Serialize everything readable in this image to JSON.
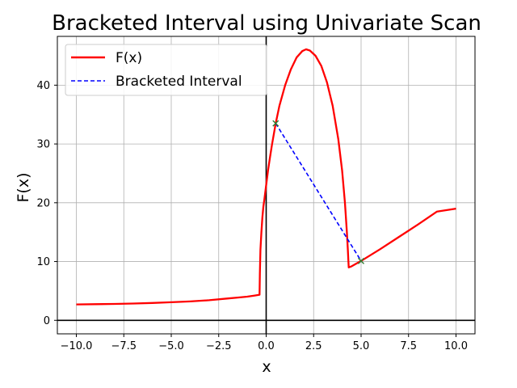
{
  "chart_data": {
    "type": "line",
    "title": "Bracketed Interval using Univariate Scan",
    "xlabel": "x",
    "ylabel": "F(x)",
    "xlim": [
      -11.0,
      11.0
    ],
    "ylim": [
      -2.3,
      48.3
    ],
    "xticks": [
      -10.0,
      -7.5,
      -5.0,
      -2.5,
      0.0,
      2.5,
      5.0,
      7.5,
      10.0
    ],
    "xtick_labels": [
      "−10.0",
      "−7.5",
      "−5.0",
      "−2.5",
      "0.0",
      "2.5",
      "5.0",
      "7.5",
      "10.0"
    ],
    "yticks": [
      0,
      10,
      20,
      30,
      40
    ],
    "ytick_labels": [
      "0",
      "10",
      "20",
      "30",
      "40"
    ],
    "grid": true,
    "legend_position": "top-left",
    "series": [
      {
        "name": "F(x)",
        "color": "#ff0000",
        "style": "solid",
        "x": [
          -10.0,
          -9.0,
          -8.0,
          -7.0,
          -6.0,
          -5.0,
          -4.0,
          -3.0,
          -2.0,
          -1.5,
          -1.0,
          -0.6,
          -0.35,
          -0.33,
          -0.3,
          -0.25,
          -0.2,
          -0.15,
          -0.1,
          0.0,
          0.1,
          0.2,
          0.3,
          0.5,
          0.7,
          1.0,
          1.3,
          1.6,
          1.9,
          2.1,
          2.3,
          2.6,
          2.9,
          3.2,
          3.5,
          3.8,
          4.0,
          4.15,
          4.25,
          4.3,
          4.33,
          4.35,
          4.5,
          5.0,
          6.0,
          7.0,
          8.0,
          9.0,
          10.0
        ],
        "y": [
          2.7,
          2.74,
          2.79,
          2.86,
          2.95,
          3.07,
          3.22,
          3.42,
          3.72,
          3.88,
          4.03,
          4.22,
          4.35,
          8.0,
          12.0,
          15.0,
          17.5,
          19.3,
          20.5,
          23.0,
          25.5,
          27.7,
          29.8,
          33.5,
          36.5,
          40.0,
          42.7,
          44.7,
          45.8,
          46.1,
          45.9,
          45.0,
          43.3,
          40.5,
          36.5,
          30.8,
          25.5,
          20.0,
          15.0,
          12.0,
          10.0,
          9.0,
          9.2,
          10.1,
          12.1,
          14.2,
          16.3,
          18.5,
          19.0
        ]
      },
      {
        "name": "Bracketed Interval",
        "color": "#0000ff",
        "style": "dashed",
        "x": [
          0.5,
          5.0
        ],
        "y": [
          33.5,
          10.1
        ]
      }
    ],
    "markers": [
      {
        "x": 0.5,
        "y": 33.5,
        "symbol": "x",
        "color": "#2e7d32"
      },
      {
        "x": 5.0,
        "y": 10.1,
        "symbol": "x",
        "color": "#2e7d32"
      }
    ]
  }
}
